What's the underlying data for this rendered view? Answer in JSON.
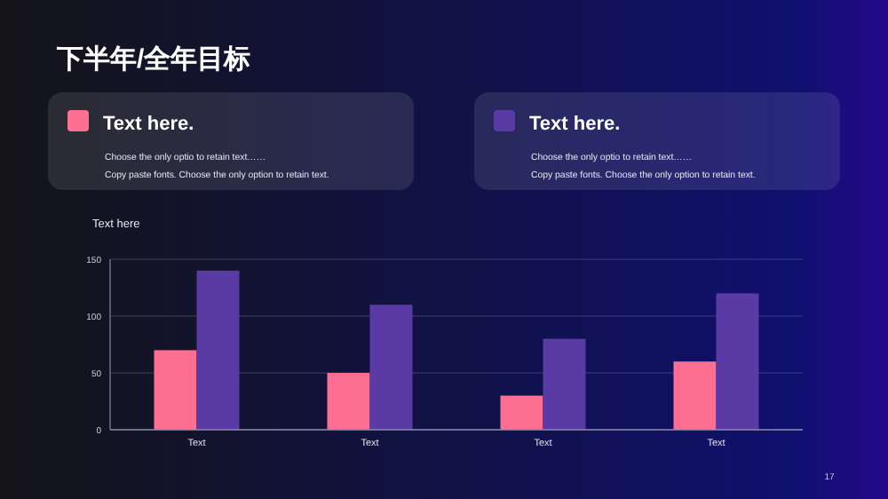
{
  "chart_data": {
    "type": "bar",
    "title": "下半年/全年目标",
    "subtitle": "Text here",
    "categories": [
      "Text",
      "Text",
      "Text",
      "Text"
    ],
    "series": [
      {
        "name": "Text here.",
        "color": "#ff6f91",
        "values": [
          70,
          50,
          30,
          60
        ]
      },
      {
        "name": "Text here.",
        "color": "#5a3ba6",
        "values": [
          140,
          110,
          80,
          120
        ]
      }
    ],
    "ylim": [
      0,
      150
    ],
    "yticks": [
      0,
      50,
      100,
      150
    ],
    "grid": "y",
    "legend": "top",
    "annotations": [
      "Choose the only optio to retain text……",
      "Copy paste  fonts. Choose the only option to retain text.",
      "Choose the only optio to retain text……",
      "Copy paste  fonts. Choose the only option to retain text.",
      "17"
    ]
  }
}
